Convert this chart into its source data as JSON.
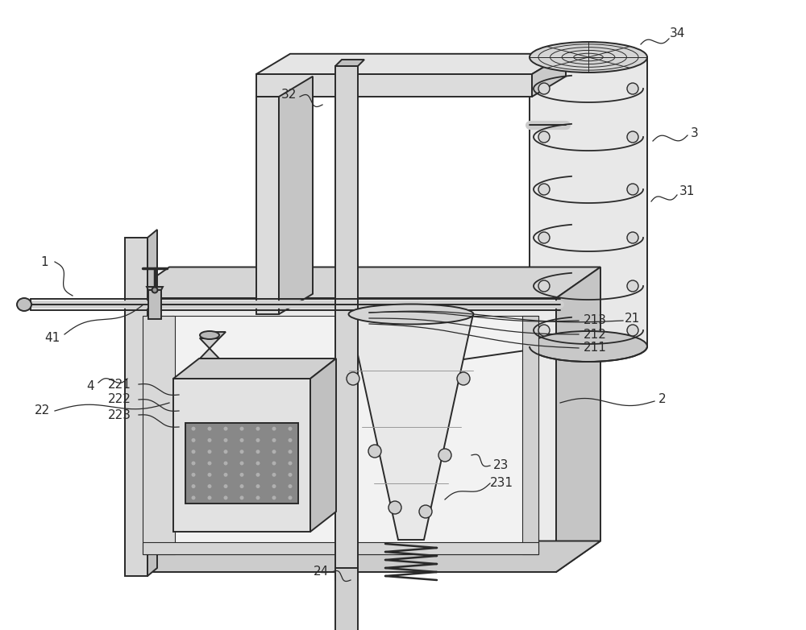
{
  "bg_color": "#ffffff",
  "line_color": "#2a2a2a",
  "lw": 1.4,
  "lw_thin": 0.8,
  "lw_thick": 2.5,
  "fill_box_front": "#ebebeb",
  "fill_box_top": "#d8d8d8",
  "fill_box_right": "#c8c8c8",
  "fill_frame": "#dcdcdc",
  "fill_cyl": "#e8e8e8",
  "fill_cyl_dark": "#c0c0c0",
  "fill_device": "#e2e2e2",
  "fill_grille": "#888888",
  "fill_cone": "#e5e5e5",
  "fill_pipe": "#d0d0d0",
  "label_fontsize": 11
}
